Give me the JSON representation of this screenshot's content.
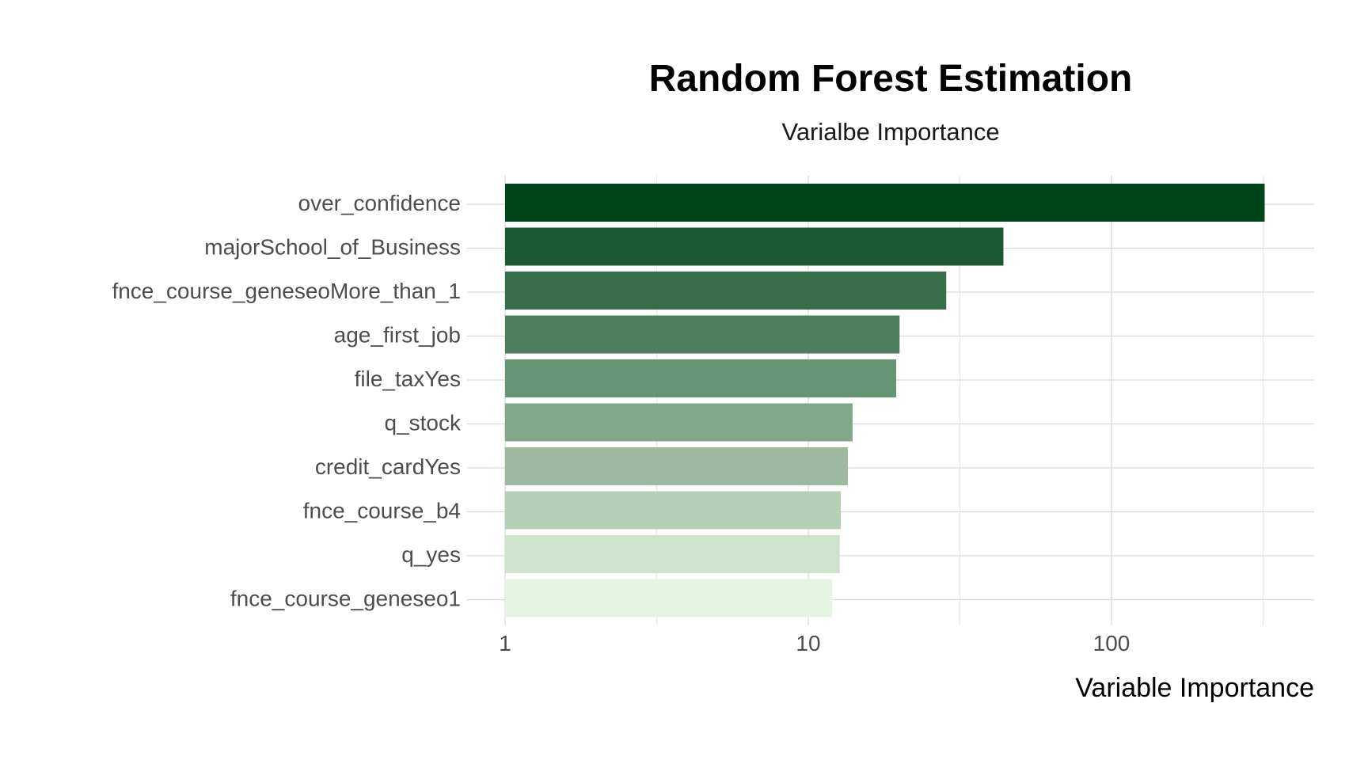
{
  "chart_data": {
    "type": "bar",
    "orientation": "horizontal",
    "title": "Random Forest Estimation",
    "subtitle": "Varialbe Importance",
    "xlabel": "Variable Importance",
    "ylabel": "",
    "x_scale": "log10",
    "xlim": [
      1,
      420
    ],
    "x_ticks": [
      1,
      10,
      100
    ],
    "x_tick_labels": [
      "1",
      "10",
      "100"
    ],
    "x_minor_ticks": [
      3.16,
      31.6,
      316
    ],
    "grid": true,
    "legend": "none",
    "categories": [
      "over_confidence",
      "majorSchool_of_Business",
      "fnce_course_geneseoMore_than_1",
      "age_first_job",
      "file_taxYes",
      "q_stock",
      "credit_cardYes",
      "fnce_course_b4",
      "q_yes",
      "fnce_course_geneseo1"
    ],
    "values": [
      320,
      44,
      28.5,
      20,
      19.5,
      14,
      13.5,
      12.8,
      12.7,
      12.0
    ],
    "colors": [
      "#00441b",
      "#1b5a31",
      "#356e48",
      "#4d7f5d",
      "#669575",
      "#82a788",
      "#9db99f",
      "#b4d0b6",
      "#cde3cc",
      "#e6f4e3"
    ]
  }
}
